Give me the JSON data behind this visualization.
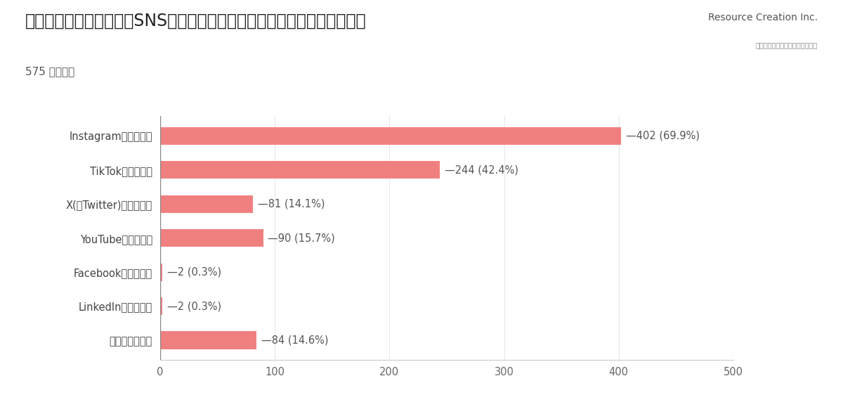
{
  "title": "就職活動を進める上で、SNSで社名を検索しましたか？　（複数回答可）",
  "subtitle": "575 件の回答",
  "categories": [
    "Instagramで検索した",
    "TikTokで検索した",
    "X(旧Twitter)で検索した",
    "YouTubeで検索した",
    "Facebookで検索した",
    "LinkedInで検索した",
    "検索していない"
  ],
  "values": [
    402,
    244,
    81,
    90,
    2,
    2,
    84
  ],
  "labels": [
    "402 (69.9%)",
    "244 (42.4%)",
    "81 (14.1%)",
    "90 (15.7%)",
    "2 (0.3%)",
    "2 (0.3%)",
    "84 (14.6%)"
  ],
  "bar_color": "#F08080",
  "background_color": "#FFFFFF",
  "xlim": [
    0,
    500
  ],
  "xticks": [
    0,
    100,
    200,
    300,
    400,
    500
  ],
  "title_fontsize": 17,
  "subtitle_fontsize": 11,
  "label_fontsize": 10.5,
  "tick_fontsize": 10.5,
  "bar_height": 0.52,
  "logo_text": "Resource Creation Inc.",
  "logo_subtext": "株式会社リソースクリエイション"
}
